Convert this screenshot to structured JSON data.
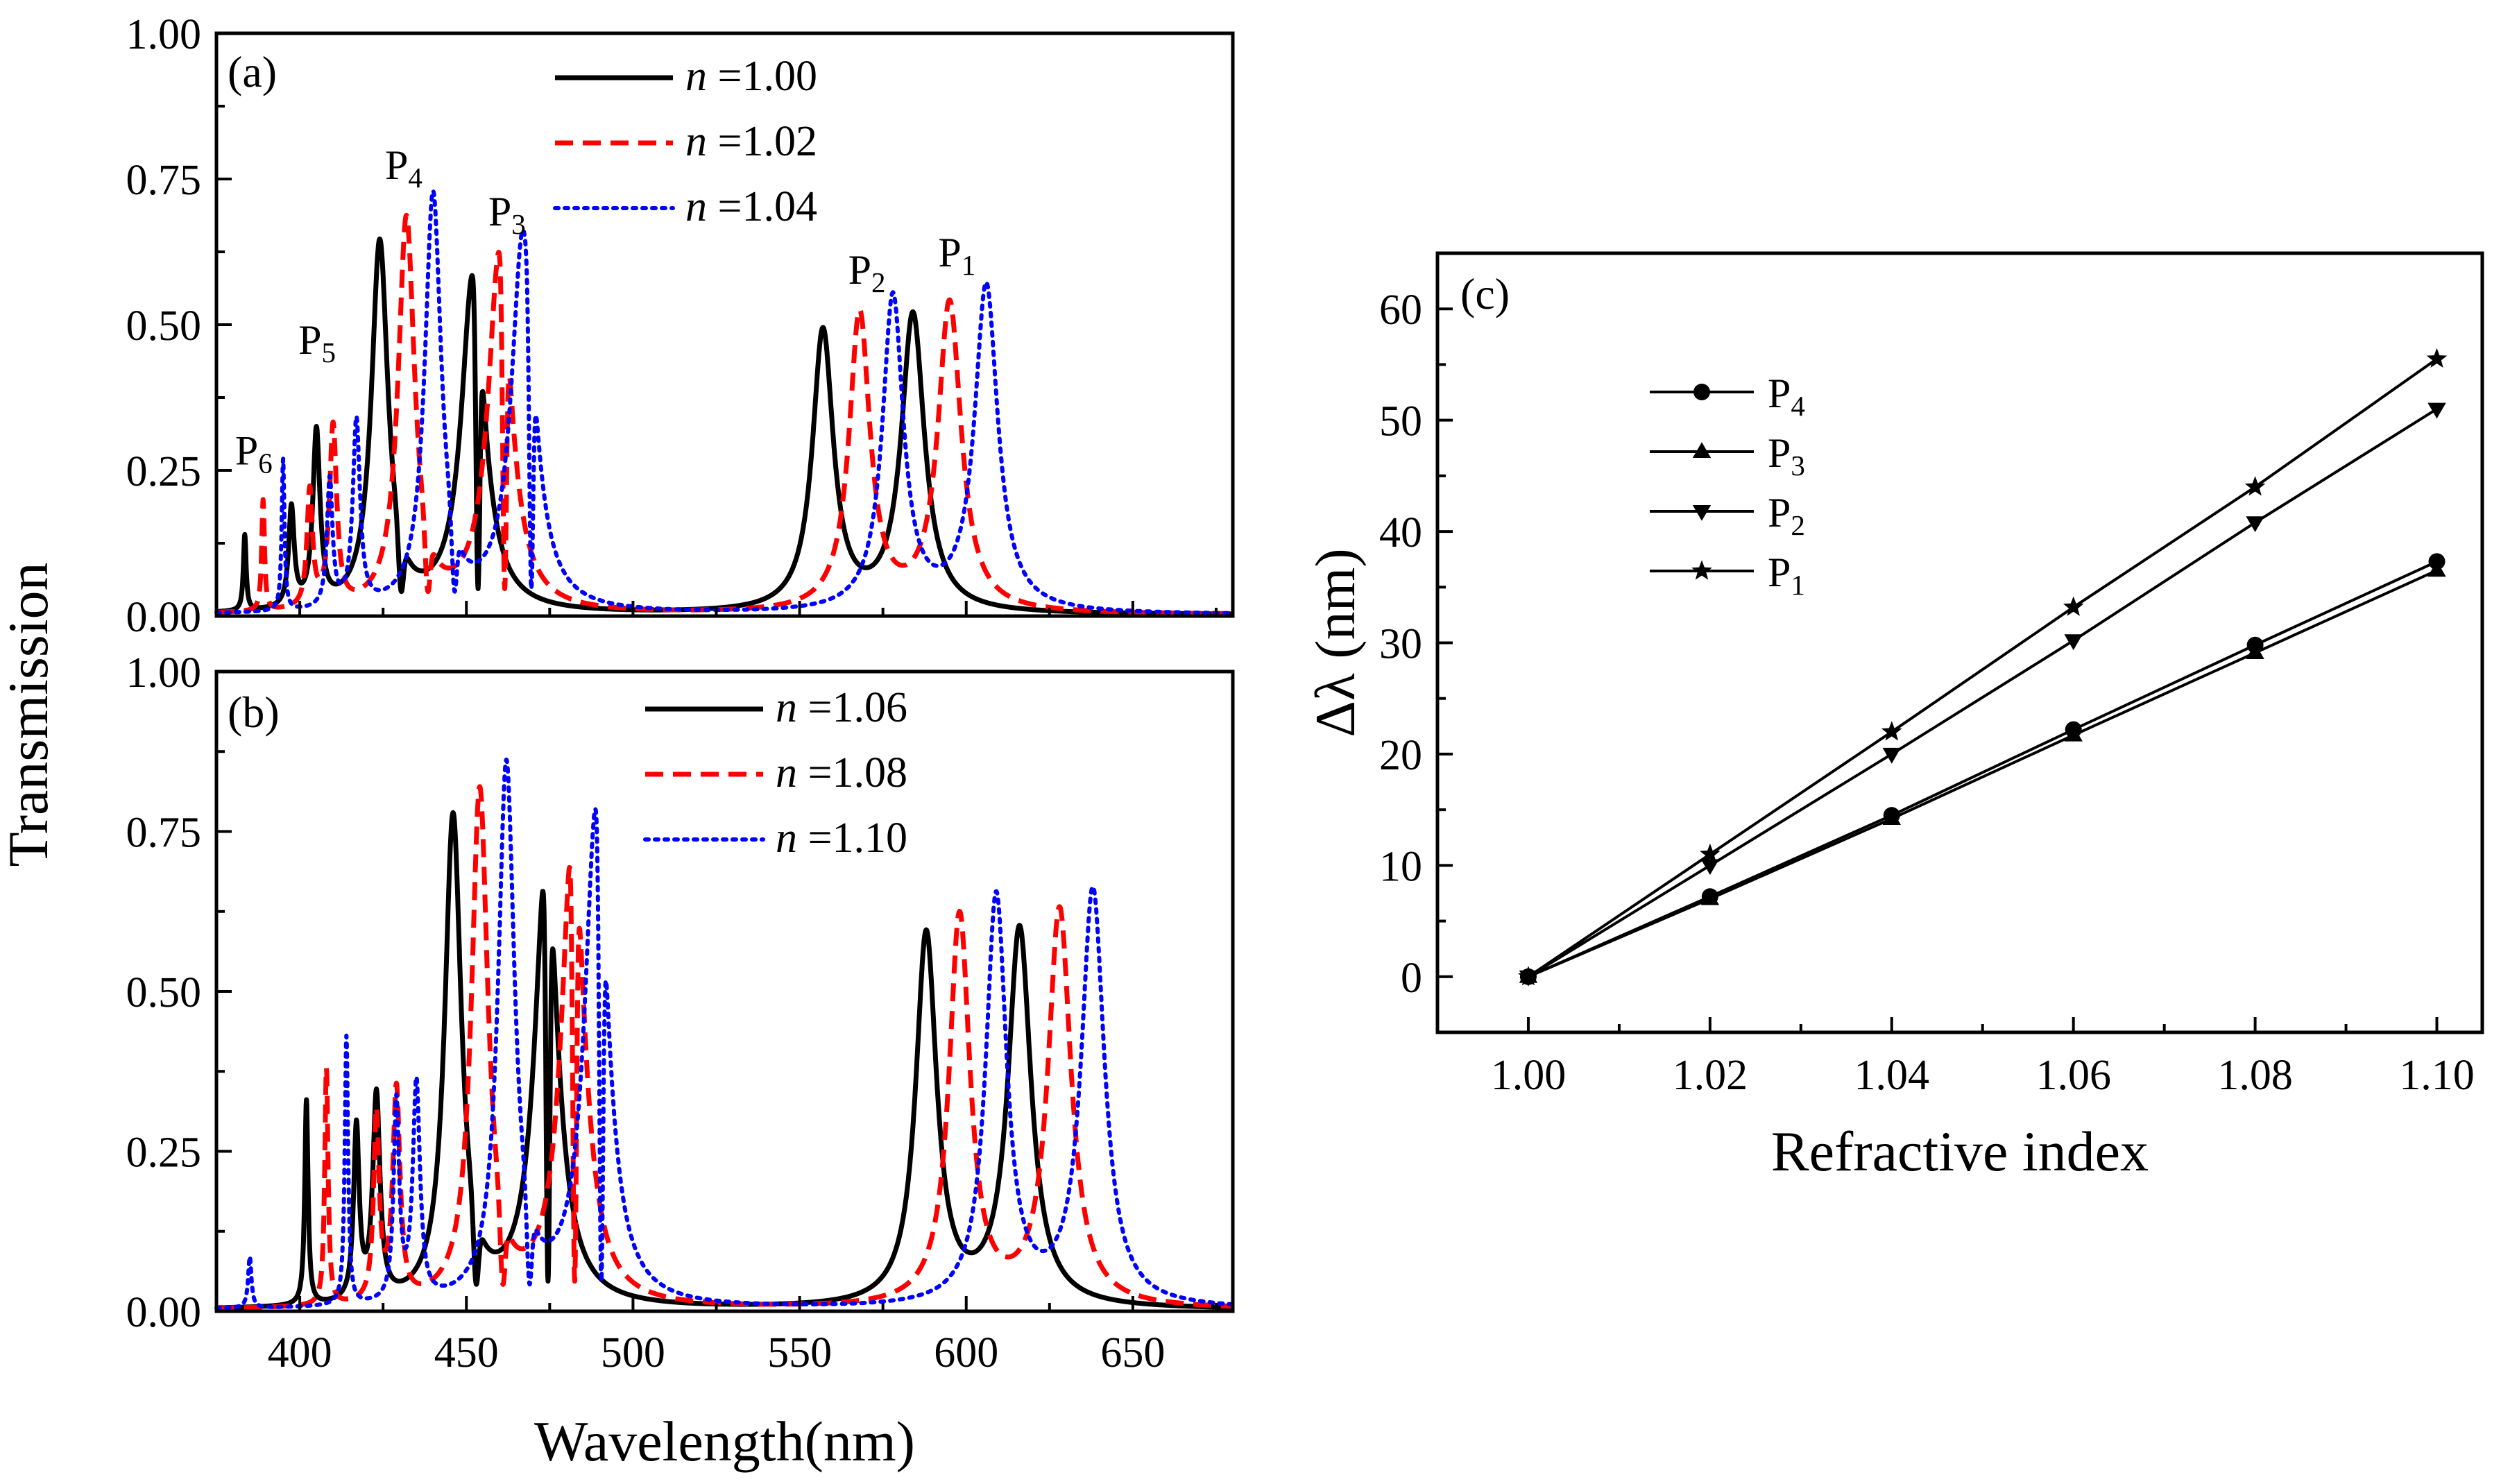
{
  "chart_data": [
    {
      "panel": "(a)",
      "type": "line",
      "xlabel": "",
      "ylabel": "Transmission",
      "xlim": [
        375,
        680
      ],
      "ylim": [
        0,
        1.0
      ],
      "xticks": [
        400,
        450,
        500,
        550,
        600,
        650
      ],
      "yticks": [
        "0.00",
        "0.25",
        "0.50",
        "0.75",
        "1.00"
      ],
      "legend_position": "top-center",
      "series": [
        {
          "name": "n",
          "value_label": "=1.00",
          "style": "solid",
          "color": "#000000",
          "peaks": [
            [
              383.5,
              0.13,
              0.5
            ],
            [
              397.5,
              0.17,
              1.0
            ],
            [
              405,
              0.3,
              1.3
            ],
            [
              424,
              0.63,
              3.0
            ],
            [
              452,
              0.58,
              4.2
            ],
            [
              557,
              0.48,
              3.8
            ],
            [
              584,
              0.51,
              4.2
            ]
          ],
          "dips": [
            [
              430.5,
              0.04,
              1.0
            ],
            [
              453.5,
              0.045,
              0.8
            ]
          ]
        },
        {
          "name": "n",
          "value_label": "=1.02",
          "style": "dashed",
          "color": "#ff0000",
          "peaks": [
            [
              389,
              0.19,
              0.5
            ],
            [
              403,
              0.2,
              1.0
            ],
            [
              410,
              0.31,
              1.3
            ],
            [
              432,
              0.67,
              3.0
            ],
            [
              460,
              0.62,
              4.2
            ],
            [
              568,
              0.51,
              3.8
            ],
            [
              595,
              0.53,
              4.2
            ]
          ],
          "dips": [
            [
              438.5,
              0.04,
              1.0
            ],
            [
              461.5,
              0.045,
              0.8
            ]
          ]
        },
        {
          "name": "n",
          "value_label": "=1.04",
          "style": "dotted",
          "color": "#0000ff",
          "peaks": [
            [
              395,
              0.26,
              0.5
            ],
            [
              409,
              0.22,
              1.0
            ],
            [
              417,
              0.32,
              1.3
            ],
            [
              440,
              0.71,
              3.0
            ],
            [
              467,
              0.65,
              4.2
            ],
            [
              578,
              0.54,
              3.8
            ],
            [
              606,
              0.56,
              4.2
            ]
          ],
          "dips": [
            [
              446.5,
              0.04,
              1.0
            ],
            [
              469.5,
              0.045,
              0.8
            ]
          ]
        }
      ],
      "annotations": [
        {
          "text": "P",
          "sub": "6",
          "x": 386,
          "y": 0.26
        },
        {
          "text": "P",
          "sub": "5",
          "x": 405,
          "y": 0.45
        },
        {
          "text": "P",
          "sub": "4",
          "x": 431,
          "y": 0.75
        },
        {
          "text": "P",
          "sub": "3",
          "x": 462,
          "y": 0.67
        },
        {
          "text": "P",
          "sub": "2",
          "x": 570,
          "y": 0.57
        },
        {
          "text": "P",
          "sub": "1",
          "x": 597,
          "y": 0.6
        }
      ]
    },
    {
      "panel": "(b)",
      "type": "line",
      "xlabel": "Wavelength(nm)",
      "ylabel": "Transmission",
      "xlim": [
        375,
        680
      ],
      "ylim": [
        0,
        1.0
      ],
      "xticks": [
        400,
        450,
        500,
        550,
        600,
        650
      ],
      "yticks": [
        "0.00",
        "0.25",
        "0.50",
        "0.75",
        "1.00"
      ],
      "legend_position": "top-center",
      "series": [
        {
          "name": "n",
          "value_label": "=1.06",
          "style": "solid",
          "color": "#000000",
          "peaks": [
            [
              402,
              0.32,
              0.6
            ],
            [
              417,
              0.27,
              1.0
            ],
            [
              423,
              0.32,
              1.3
            ],
            [
              446,
              0.76,
              3.0
            ],
            [
              474,
              0.7,
              4.2
            ],
            [
              588,
              0.58,
              3.8
            ],
            [
              616,
              0.59,
              4.2
            ]
          ],
          "dips": [
            [
              453,
              0.04,
              1.0
            ],
            [
              474.5,
              0.045,
              0.8
            ]
          ]
        },
        {
          "name": "n",
          "value_label": "=1.08",
          "style": "dashed",
          "color": "#ff0000",
          "peaks": [
            [
              408,
              0.37,
              0.6
            ],
            [
              423,
              0.29,
              1.0
            ],
            [
              429,
              0.33,
              1.3
            ],
            [
              454,
              0.8,
              3.0
            ],
            [
              482,
              0.74,
              4.2
            ],
            [
              598,
              0.61,
              3.8
            ],
            [
              628,
              0.62,
              4.2
            ]
          ],
          "dips": [
            [
              461,
              0.04,
              1.0
            ],
            [
              482.5,
              0.045,
              0.8
            ]
          ]
        },
        {
          "name": "n",
          "value_label": "=1.10",
          "style": "dotted",
          "color": "#0000ff",
          "peaks": [
            [
              385,
              0.08,
              0.6
            ],
            [
              414,
              0.42,
              0.6
            ],
            [
              429,
              0.31,
              1.0
            ],
            [
              435,
              0.34,
              1.3
            ],
            [
              462,
              0.84,
              3.0
            ],
            [
              489,
              0.78,
              4.2
            ],
            [
              609,
              0.64,
              3.8
            ],
            [
              638,
              0.65,
              4.2
            ]
          ],
          "dips": [
            [
              469,
              0.04,
              1.0
            ],
            [
              490.5,
              0.045,
              0.8
            ]
          ]
        }
      ]
    },
    {
      "panel": "(c)",
      "type": "line",
      "xlabel": "Refractive index",
      "ylabel": "Δλ (nm)",
      "xlim": [
        0.99,
        1.105
      ],
      "ylim": [
        -5,
        65
      ],
      "xticks": [
        "1.00",
        "1.02",
        "1.04",
        "1.06",
        "1.08",
        "1.10"
      ],
      "yticks": [
        "0",
        "10",
        "20",
        "30",
        "40",
        "50",
        "60"
      ],
      "x": [
        1.0,
        1.02,
        1.04,
        1.06,
        1.08,
        1.1
      ],
      "legend_position": "top-left",
      "series": [
        {
          "name": "P",
          "sub": "4",
          "marker": "circle",
          "values": [
            0,
            7.2,
            14.5,
            22.2,
            29.8,
            37.3
          ]
        },
        {
          "name": "P",
          "sub": "3",
          "marker": "triangle-up",
          "values": [
            0,
            7.0,
            14.2,
            21.7,
            29.1,
            36.5
          ]
        },
        {
          "name": "P",
          "sub": "2",
          "marker": "triangle-down",
          "values": [
            0,
            10.0,
            20.0,
            30.2,
            40.8,
            51.0
          ]
        },
        {
          "name": "P",
          "sub": "1",
          "marker": "star",
          "values": [
            0,
            11.0,
            22.0,
            33.2,
            44.0,
            55.5
          ]
        }
      ]
    }
  ]
}
